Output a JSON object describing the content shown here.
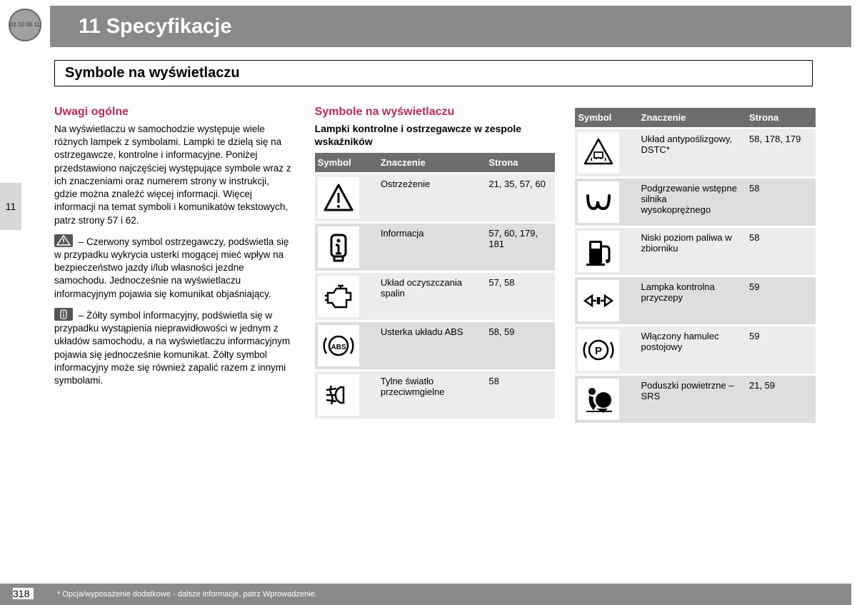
{
  "header": {
    "title": "11 Specyfikacje",
    "logo_text": "01 10 00 11"
  },
  "section": {
    "title": "Symbole na wyświetlaczu"
  },
  "tab": {
    "label": "11"
  },
  "col1": {
    "heading": "Uwagi ogólne",
    "para1": "Na wyświetlaczu w samochodzie występuje wiele różnych lampek z symbolami. Lampki te dzielą się na ostrzegawcze, kontrolne i informacyjne. Poniżej przedstawiono najczęściej występujące symbole wraz z ich znaczeniami oraz numerem strony w instrukcji, gdzie można znaleźć więcej informacji. Więcej informacji na temat symboli i komunikatów tekstowych, patrz strony 57 i 62.",
    "para2": " – Czerwony symbol ostrzegawczy, podświetla się w przypadku wykrycia usterki mogącej mieć wpływ na bezpieczeństwo jazdy i/lub własności jezdne samochodu. Jednocześnie na wyświetlaczu informacyjnym pojawia się komunikat objaśniający.",
    "para3": " – Żółty symbol informacyjny, podświetla się w przypadku wystąpienia nieprawidłowości w jednym z układów samochodu, a na wyświetlaczu informacyjnym pojawia się jednocześnie komunikat. Żółty symbol informacyjny może się również zapalić razem z innymi symbolami."
  },
  "col2": {
    "heading": "Symbole na wyświetlaczu",
    "subheading": "Lampki kontrolne i ostrzegawcze w zespole wskaźników",
    "th": {
      "symbol": "Symbol",
      "meaning": "Znaczenie",
      "page": "Strona"
    },
    "rows": [
      {
        "icon": "warning",
        "meaning": "Ostrzeżenie",
        "page": "21, 35, 57, 60"
      },
      {
        "icon": "info",
        "meaning": "Informacja",
        "page": "57, 60, 179, 181"
      },
      {
        "icon": "engine",
        "meaning": "Układ oczyszczania spalin",
        "page": "57, 58"
      },
      {
        "icon": "abs",
        "meaning": "Usterka układu ABS",
        "page": "58, 59"
      },
      {
        "icon": "fog",
        "meaning": "Tylne światło przeciwmgielne",
        "page": "58"
      }
    ]
  },
  "col3": {
    "th": {
      "symbol": "Symbol",
      "meaning": "Znaczenie",
      "page": "Strona"
    },
    "rows": [
      {
        "icon": "dstc",
        "meaning": "Układ antypoślizgowy, DSTC*",
        "page": "58, 178, 179"
      },
      {
        "icon": "glow",
        "meaning": "Podgrzewanie wstępne silnika wysokoprężnego",
        "page": "58"
      },
      {
        "icon": "fuel",
        "meaning": "Niski poziom paliwa w zbiorniku",
        "page": "58"
      },
      {
        "icon": "trailer",
        "meaning": "Lampka kontrolna przyczepy",
        "page": "59"
      },
      {
        "icon": "parking",
        "meaning": "Włączony hamulec postojowy",
        "page": "59"
      },
      {
        "icon": "airbag",
        "meaning": "Poduszki powietrzne – SRS",
        "page": "21, 59"
      }
    ]
  },
  "footer": {
    "page_num": "318",
    "text": "* Opcja/wyposażenie dodatkowe - dalsze informacje, patrz Wprowadzenie."
  }
}
